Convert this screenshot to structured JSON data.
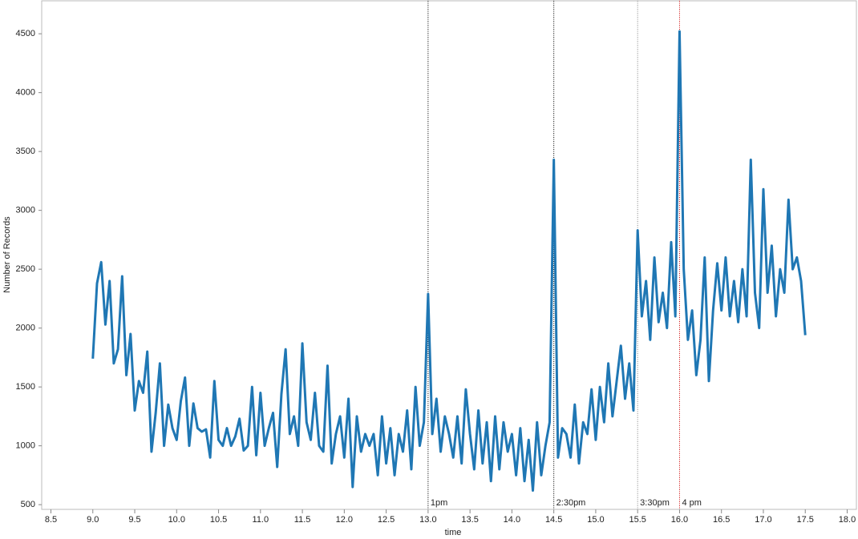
{
  "chart_data": {
    "type": "line",
    "x_label": "time",
    "y_label": "Number of Records",
    "x": [
      9.0,
      9.05,
      9.1,
      9.15,
      9.2,
      9.25,
      9.3,
      9.35,
      9.4,
      9.45,
      9.5,
      9.55,
      9.6,
      9.65,
      9.7,
      9.75,
      9.8,
      9.85,
      9.9,
      9.95,
      10.0,
      10.05,
      10.1,
      10.15,
      10.2,
      10.25,
      10.3,
      10.35,
      10.4,
      10.45,
      10.5,
      10.55,
      10.6,
      10.65,
      10.7,
      10.75,
      10.8,
      10.85,
      10.9,
      10.95,
      11.0,
      11.05,
      11.1,
      11.15,
      11.2,
      11.25,
      11.3,
      11.35,
      11.4,
      11.45,
      11.5,
      11.55,
      11.6,
      11.65,
      11.7,
      11.75,
      11.8,
      11.85,
      11.9,
      11.95,
      12.0,
      12.05,
      12.1,
      12.15,
      12.2,
      12.25,
      12.3,
      12.35,
      12.4,
      12.45,
      12.5,
      12.55,
      12.6,
      12.65,
      12.7,
      12.75,
      12.8,
      12.85,
      12.9,
      12.95,
      13.0,
      13.05,
      13.1,
      13.15,
      13.2,
      13.25,
      13.3,
      13.35,
      13.4,
      13.45,
      13.5,
      13.55,
      13.6,
      13.65,
      13.7,
      13.75,
      13.8,
      13.85,
      13.9,
      13.95,
      14.0,
      14.05,
      14.1,
      14.15,
      14.2,
      14.25,
      14.3,
      14.35,
      14.4,
      14.45,
      14.5,
      14.55,
      14.6,
      14.65,
      14.7,
      14.75,
      14.8,
      14.85,
      14.9,
      14.95,
      15.0,
      15.05,
      15.1,
      15.15,
      15.2,
      15.25,
      15.3,
      15.35,
      15.4,
      15.45,
      15.5,
      15.55,
      15.6,
      15.65,
      15.7,
      15.75,
      15.8,
      15.85,
      15.9,
      15.95,
      16.0,
      16.05,
      16.1,
      16.15,
      16.2,
      16.25,
      16.3,
      16.35,
      16.4,
      16.45,
      16.5,
      16.55,
      16.6,
      16.65,
      16.7,
      16.75,
      16.8,
      16.85,
      16.9,
      16.95,
      17.0,
      17.05,
      17.1,
      17.15,
      17.2,
      17.25,
      17.3,
      17.35,
      17.4,
      17.45,
      17.5
    ],
    "series": [
      {
        "color": "#1f77b4",
        "values": [
          1740,
          2380,
          2560,
          2030,
          2400,
          1700,
          1820,
          2440,
          1600,
          1950,
          1300,
          1550,
          1450,
          1800,
          950,
          1280,
          1700,
          1000,
          1350,
          1150,
          1050,
          1380,
          1580,
          1000,
          1360,
          1150,
          1120,
          1140,
          900,
          1550,
          1050,
          1000,
          1150,
          1000,
          1080,
          1230,
          960,
          1000,
          1500,
          920,
          1450,
          1000,
          1150,
          1280,
          820,
          1440,
          1820,
          1100,
          1250,
          1000,
          1870,
          1200,
          1050,
          1450,
          1000,
          950,
          1680,
          850,
          1100,
          1250,
          900,
          1400,
          650,
          1250,
          950,
          1100,
          1000,
          1100,
          750,
          1250,
          850,
          1150,
          750,
          1100,
          950,
          1300,
          800,
          1500,
          1000,
          1200,
          2290,
          1100,
          1400,
          950,
          1250,
          1100,
          900,
          1250,
          850,
          1480,
          1100,
          800,
          1300,
          850,
          1200,
          700,
          1250,
          800,
          1200,
          950,
          1100,
          750,
          1150,
          700,
          1050,
          620,
          1200,
          750,
          1000,
          1200,
          3430,
          900,
          1150,
          1100,
          900,
          1350,
          850,
          1200,
          1100,
          1480,
          1050,
          1500,
          1200,
          1700,
          1250,
          1550,
          1850,
          1400,
          1700,
          1300,
          2830,
          2100,
          2400,
          1900,
          2600,
          2050,
          2300,
          2000,
          2730,
          2100,
          4520,
          2500,
          1900,
          2150,
          1600,
          1900,
          2600,
          1550,
          2150,
          2550,
          2150,
          2600,
          2100,
          2400,
          2050,
          2500,
          2100,
          3430,
          2300,
          2000,
          3180,
          2300,
          2700,
          2100,
          2500,
          2300,
          3090,
          2500,
          2600,
          2400,
          1940
        ]
      }
    ],
    "xlim": [
      8.39,
      18.11
    ],
    "ylim": [
      460,
      4780
    ],
    "xticks": [
      8.5,
      {
        "value": 9,
        "label": "9.0"
      },
      9.5,
      {
        "value": 10,
        "label": "10.0"
      },
      10.5,
      {
        "value": 11,
        "label": "11.0"
      },
      11.5,
      {
        "value": 12,
        "label": "12.0"
      },
      12.5,
      {
        "value": 13,
        "label": "13.0"
      },
      13.5,
      {
        "value": 14,
        "label": "14.0"
      },
      14.5,
      {
        "value": 15,
        "label": "15.0"
      },
      15.5,
      {
        "value": 16,
        "label": "16.0"
      },
      16.5,
      {
        "value": 17,
        "label": "17.0"
      },
      17.5,
      {
        "value": 18,
        "label": "18.0"
      }
    ],
    "yticks": [
      500,
      1000,
      1500,
      2000,
      2500,
      3000,
      3500,
      4000,
      4500
    ],
    "annotations": [
      {
        "x": 13.0,
        "label": "1pm",
        "color": "#000000"
      },
      {
        "x": 14.5,
        "label": "2:30pm",
        "color": "#000000"
      },
      {
        "x": 15.5,
        "label": "3:30pm",
        "color": "#888888"
      },
      {
        "x": 16.0,
        "label": "4 pm",
        "color": "#cc0000"
      }
    ]
  }
}
